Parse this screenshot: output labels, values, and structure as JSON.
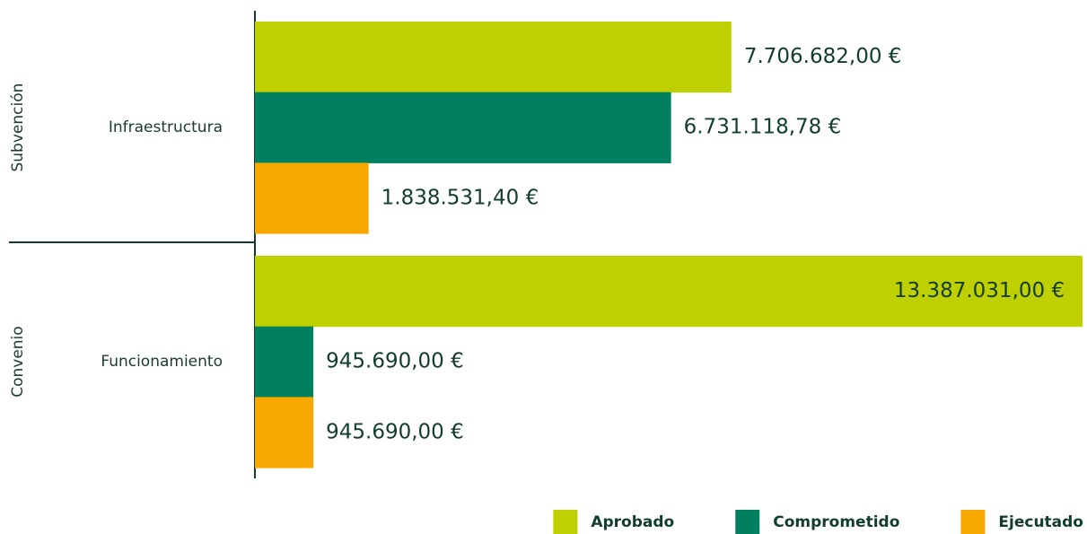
{
  "chart_data": {
    "type": "grouped-hbar",
    "groups": [
      "Subvención",
      "Convenio"
    ],
    "categories": [
      "Infraestructura",
      "Funcionamiento"
    ],
    "series": [
      {
        "name": "Aprobado",
        "color": "#bfd000",
        "values": [
          7706682,
          13387031
        ],
        "value_labels": [
          "7.706.682,00 €",
          "13.387.031,00 €"
        ]
      },
      {
        "name": "Comprometido",
        "color": "#00805e",
        "values": [
          6731118.78,
          945690
        ],
        "value_labels": [
          "6.731.118,78 €",
          "945.690,00 €"
        ]
      },
      {
        "name": "Ejecutado",
        "color": "#f7a800",
        "values": [
          1838531.4,
          945690
        ],
        "value_labels": [
          "1.838.531,40 €",
          "945.690,00 €"
        ]
      }
    ],
    "xlim": [
      0,
      13400000
    ],
    "legend": "bottom-right"
  }
}
